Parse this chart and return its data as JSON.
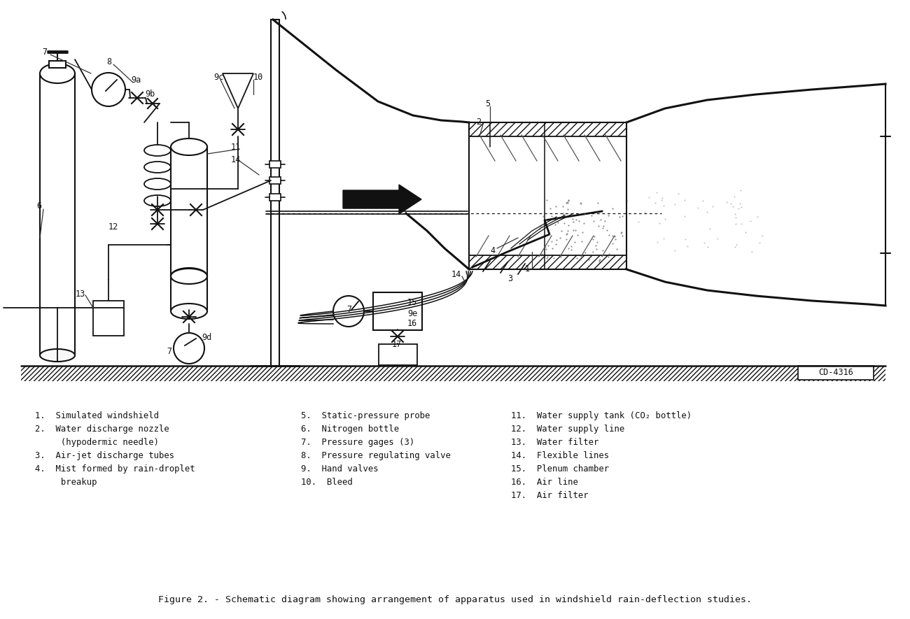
{
  "title": "Figure 2. - Schematic diagram showing arrangement of apparatus used in windshield rain-deflection studies.",
  "bg_color": "#ffffff",
  "line_color": "#111111",
  "cd_label": "CD-4316",
  "legend_items_col1": [
    "1.  Simulated windshield",
    "2.  Water discharge nozzle",
    "     (hypodermic needle)",
    "3.  Air-jet discharge tubes",
    "4.  Mist formed by rain-droplet",
    "     breakup"
  ],
  "legend_items_col2": [
    "5.  Static-pressure probe",
    "6.  Nitrogen bottle",
    "7.  Pressure gages (3)",
    "8.  Pressure regulating valve",
    "9.  Hand valves",
    "10.  Bleed"
  ],
  "legend_items_col3": [
    "11.  Water supply tank (CO₂ bottle)",
    "12.  Water supply line",
    "13.  Water filter",
    "14.  Flexible lines",
    "15.  Plenum chamber",
    "16.  Air line",
    "17.  Air filter"
  ]
}
